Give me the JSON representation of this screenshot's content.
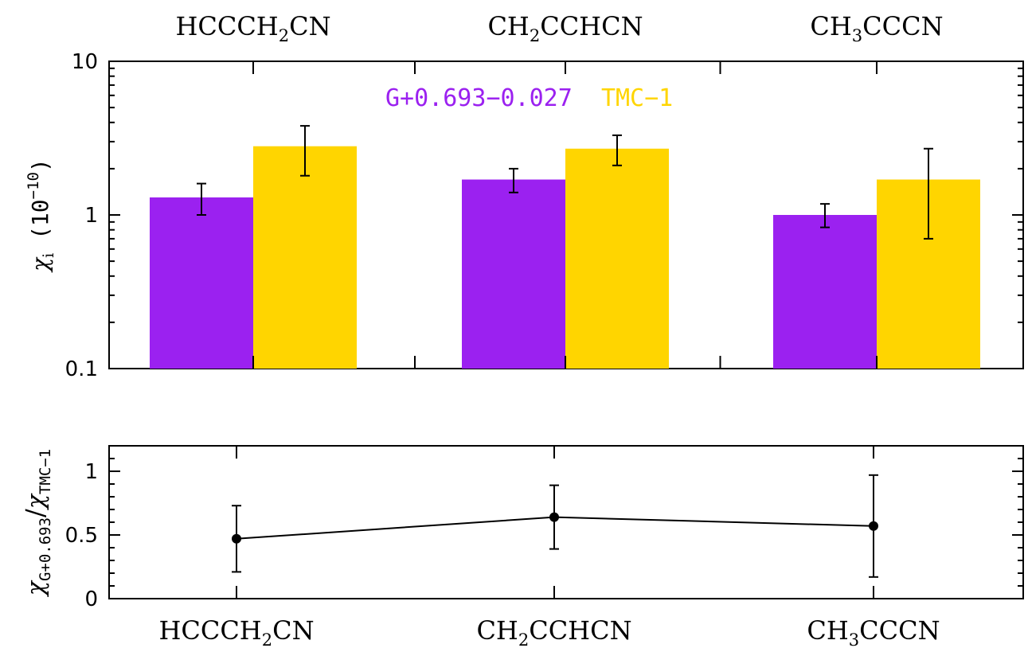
{
  "chart_data": [
    {
      "type": "bar",
      "categories": [
        "HCCCH2CN",
        "CH2CCHCN",
        "CH3CCCN"
      ],
      "category_labels": [
        {
          "main": "HCCCH",
          "sub": "2",
          "rest": "CN"
        },
        {
          "main": "CH",
          "sub": "2",
          "rest": "CCHCN"
        },
        {
          "main": "CH",
          "sub": "3",
          "rest": "CCCN"
        }
      ],
      "series": [
        {
          "name": "G+0.693−0.027",
          "color": "#9B21F0",
          "values": [
            1.3,
            1.7,
            1.0
          ],
          "err_low": [
            1.0,
            1.4,
            0.83
          ],
          "err_high": [
            1.6,
            2.0,
            1.18
          ]
        },
        {
          "name": "TMC−1",
          "color": "#FFD500",
          "values": [
            2.8,
            2.7,
            1.7
          ],
          "err_low": [
            1.8,
            2.1,
            0.7
          ],
          "err_high": [
            3.8,
            3.3,
            2.7
          ]
        }
      ],
      "ylabel": {
        "main": "χ",
        "sub": "i",
        "unit_prefix": "(10",
        "unit_exp": "−10",
        "unit_suffix": ")"
      },
      "yscale": "log",
      "ylim": [
        0.1,
        10
      ],
      "ytick_labels": [
        "0.1",
        "1",
        "10"
      ],
      "ytick_values": [
        0.1,
        1,
        10
      ],
      "legend_placement": "top-center"
    },
    {
      "type": "line",
      "categories": [
        "HCCCH2CN",
        "CH2CCHCN",
        "CH3CCCN"
      ],
      "values": [
        0.47,
        0.64,
        0.57
      ],
      "err_low": [
        0.21,
        0.39,
        0.17
      ],
      "err_high": [
        0.73,
        0.89,
        0.97
      ],
      "ylabel": {
        "chi": "χ",
        "num_sub": "G+0.693",
        "den_sub": "TMC−1"
      },
      "ylim": [
        0,
        1.2
      ],
      "ytick_labels": [
        "0",
        "0.5",
        "1"
      ],
      "ytick_values": [
        0,
        0.5,
        1
      ]
    }
  ]
}
